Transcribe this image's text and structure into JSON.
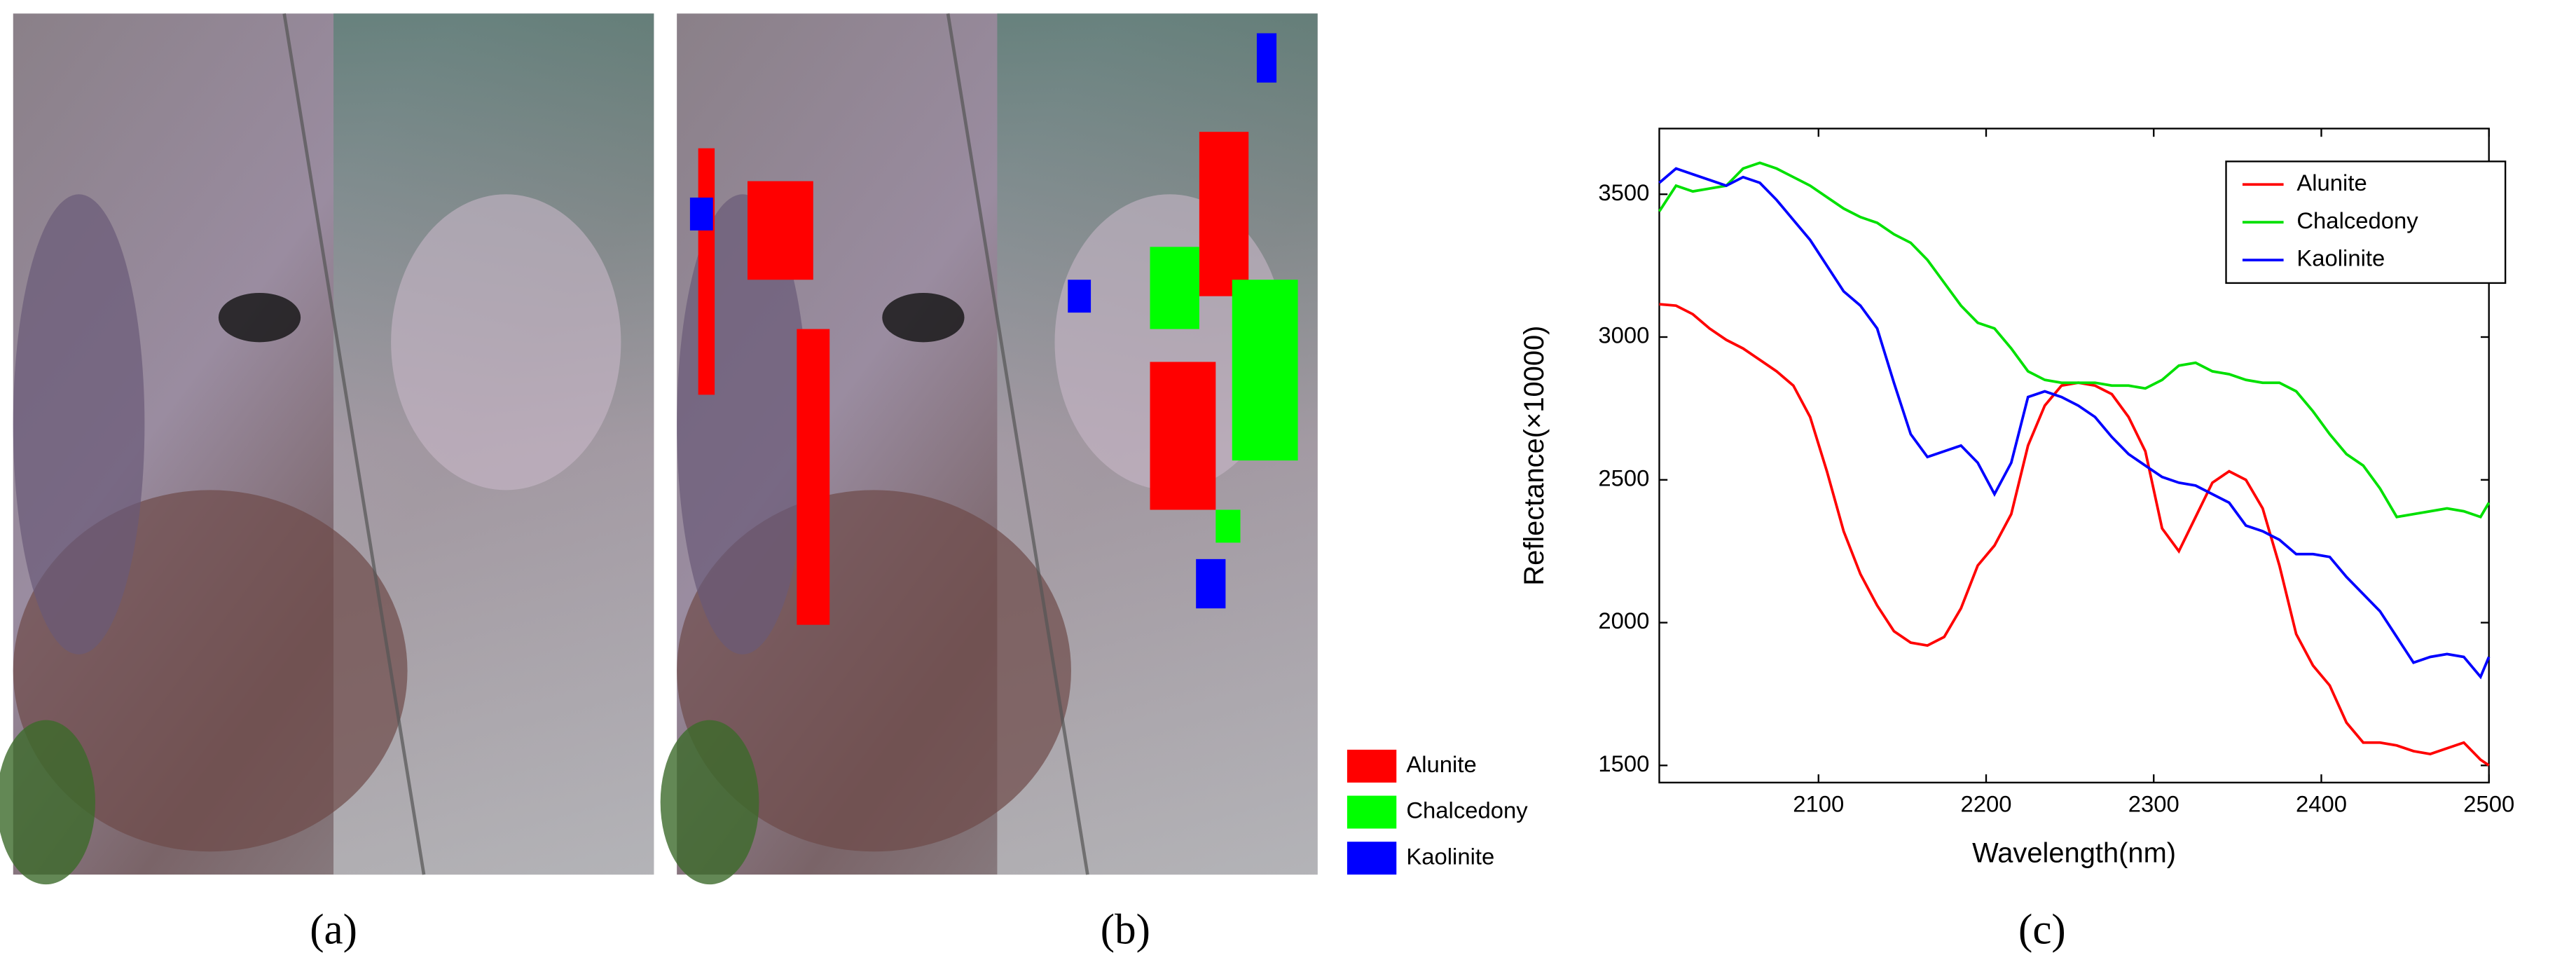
{
  "panels": [
    "(a)",
    "(b)",
    "(c)"
  ],
  "image_legend": [
    {
      "name": "Alunite",
      "color": "#ff0000"
    },
    {
      "name": "Chalcedony",
      "color": "#00ff00"
    },
    {
      "name": "Kaolinite",
      "color": "#0000ff"
    }
  ],
  "chart_data": {
    "type": "line",
    "x_label": "Wavelength(nm)",
    "y_label": "Reflectance(×10000)",
    "x": [
      2005,
      2015,
      2025,
      2035,
      2045,
      2055,
      2065,
      2075,
      2085,
      2095,
      2105,
      2115,
      2125,
      2135,
      2145,
      2155,
      2165,
      2175,
      2185,
      2195,
      2205,
      2215,
      2225,
      2235,
      2245,
      2255,
      2265,
      2275,
      2285,
      2295,
      2305,
      2315,
      2325,
      2335,
      2345,
      2355,
      2365,
      2375,
      2385,
      2395,
      2405,
      2415,
      2425,
      2435,
      2445,
      2455,
      2465,
      2475,
      2485,
      2495,
      2500
    ],
    "series": [
      {
        "name": "Alunite",
        "color": "#ff0000",
        "values": [
          3115,
          3110,
          3080,
          3030,
          2990,
          2960,
          2920,
          2880,
          2830,
          2720,
          2530,
          2320,
          2170,
          2060,
          1970,
          1930,
          1920,
          1950,
          2050,
          2200,
          2270,
          2380,
          2620,
          2760,
          2830,
          2840,
          2830,
          2800,
          2720,
          2600,
          2330,
          2250,
          2370,
          2490,
          2530,
          2500,
          2400,
          2200,
          1960,
          1850,
          1780,
          1650,
          1580,
          1580,
          1570,
          1550,
          1540,
          1560,
          1580,
          1520,
          1500
        ]
      },
      {
        "name": "Chalcedony",
        "color": "#00e000",
        "values": [
          3440,
          3530,
          3510,
          3520,
          3530,
          3590,
          3610,
          3590,
          3560,
          3530,
          3490,
          3450,
          3420,
          3400,
          3360,
          3330,
          3270,
          3190,
          3110,
          3050,
          3030,
          2960,
          2880,
          2850,
          2840,
          2840,
          2840,
          2830,
          2830,
          2820,
          2850,
          2900,
          2910,
          2880,
          2870,
          2850,
          2840,
          2840,
          2810,
          2740,
          2660,
          2590,
          2550,
          2470,
          2370,
          2380,
          2390,
          2400,
          2390,
          2370,
          2420
        ]
      },
      {
        "name": "Kaolinite",
        "color": "#0000ff",
        "values": [
          3540,
          3590,
          3570,
          3550,
          3530,
          3560,
          3540,
          3480,
          3410,
          3340,
          3250,
          3160,
          3110,
          3030,
          2840,
          2660,
          2580,
          2600,
          2620,
          2560,
          2450,
          2560,
          2790,
          2810,
          2790,
          2760,
          2720,
          2650,
          2590,
          2550,
          2510,
          2490,
          2480,
          2450,
          2420,
          2340,
          2320,
          2290,
          2240,
          2240,
          2230,
          2160,
          2100,
          2040,
          1950,
          1860,
          1880,
          1890,
          1880,
          1810,
          1880
        ]
      }
    ],
    "xlim": [
      2005,
      2500
    ],
    "xticks": [
      2100,
      2200,
      2300,
      2400,
      2500
    ],
    "ylim": [
      1440,
      3730
    ],
    "yticks": [
      1500,
      2000,
      2500,
      3000,
      3500
    ],
    "legend": "upper right",
    "grid": false
  }
}
